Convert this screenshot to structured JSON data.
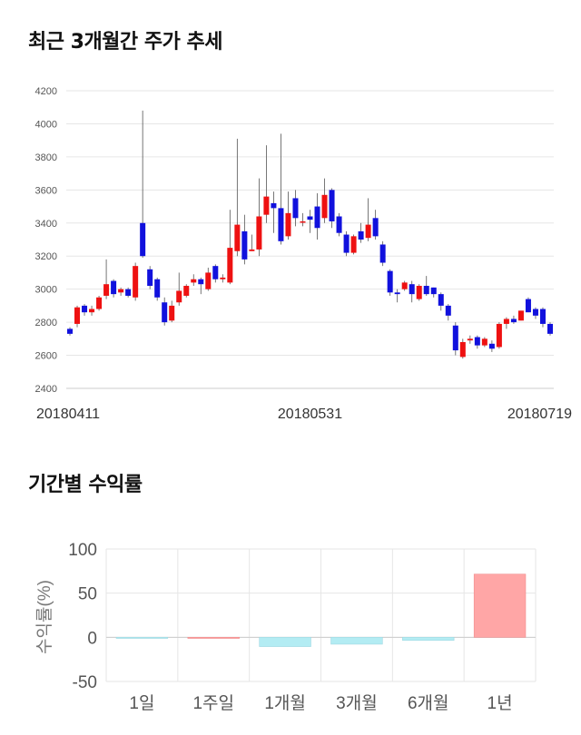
{
  "sections": {
    "price_title": "최근 3개월간 주가 추세",
    "return_title": "기간별 수익률"
  },
  "colors": {
    "up": "#ee1111",
    "down": "#1111dd",
    "positive_bar": "#ffa6a6",
    "negative_bar": "#b3ecf3",
    "grid": "#e6e6e6"
  },
  "chart_data": [
    {
      "type": "candlestick",
      "title": "최근 3개월간 주가 추세",
      "ylim": [
        2400,
        4200
      ],
      "yticks": [
        2400,
        2600,
        2800,
        3000,
        3200,
        3400,
        3600,
        3800,
        4000,
        4200
      ],
      "xtick_labels": [
        {
          "index": 0,
          "label": "20180411"
        },
        {
          "index": 33,
          "label": "20180531"
        },
        {
          "index": 67,
          "label": "20180719"
        }
      ],
      "candles": [
        [
          2760,
          2730,
          2770,
          2720
        ],
        [
          2790,
          2890,
          2900,
          2770
        ],
        [
          2900,
          2860,
          2910,
          2840
        ],
        [
          2860,
          2880,
          2900,
          2840
        ],
        [
          2880,
          2950,
          2960,
          2870
        ],
        [
          2960,
          3030,
          3180,
          2940
        ],
        [
          3050,
          2970,
          3060,
          2950
        ],
        [
          2980,
          3000,
          3010,
          2960
        ],
        [
          3000,
          2960,
          3010,
          2950
        ],
        [
          2950,
          3140,
          3160,
          2930
        ],
        [
          3400,
          3200,
          4080,
          3190
        ],
        [
          3120,
          3020,
          3140,
          3000
        ],
        [
          3060,
          2950,
          3070,
          2930
        ],
        [
          2920,
          2800,
          2950,
          2780
        ],
        [
          2810,
          2900,
          2930,
          2800
        ],
        [
          2920,
          2990,
          3100,
          2900
        ],
        [
          2960,
          3020,
          3030,
          2950
        ],
        [
          3040,
          3060,
          3090,
          3020
        ],
        [
          3060,
          3030,
          3070,
          2970
        ],
        [
          3000,
          3100,
          3130,
          2990
        ],
        [
          3140,
          3060,
          3150,
          3040
        ],
        [
          3060,
          3070,
          3090,
          3040
        ],
        [
          3040,
          3250,
          3480,
          3030
        ],
        [
          3230,
          3390,
          3910,
          3200
        ],
        [
          3350,
          3180,
          3450,
          3150
        ],
        [
          3230,
          3240,
          3330,
          3230
        ],
        [
          3240,
          3440,
          3670,
          3200
        ],
        [
          3450,
          3560,
          3870,
          3400
        ],
        [
          3520,
          3490,
          3590,
          3340
        ],
        [
          3490,
          3290,
          3940,
          3270
        ],
        [
          3320,
          3460,
          3590,
          3300
        ],
        [
          3550,
          3430,
          3600,
          3380
        ],
        [
          3410,
          3410,
          3460,
          3380
        ],
        [
          3440,
          3420,
          3480,
          3340
        ],
        [
          3500,
          3370,
          3580,
          3300
        ],
        [
          3430,
          3570,
          3670,
          3400
        ],
        [
          3600,
          3410,
          3610,
          3370
        ],
        [
          3440,
          3340,
          3460,
          3320
        ],
        [
          3330,
          3220,
          3350,
          3200
        ],
        [
          3220,
          3320,
          3330,
          3210
        ],
        [
          3350,
          3300,
          3400,
          3280
        ],
        [
          3310,
          3390,
          3550,
          3290
        ],
        [
          3430,
          3320,
          3480,
          3300
        ],
        [
          3270,
          3160,
          3290,
          3140
        ],
        [
          3110,
          2980,
          3120,
          2960
        ],
        [
          2980,
          2970,
          3000,
          2920
        ],
        [
          3000,
          3040,
          3050,
          2990
        ],
        [
          3030,
          2970,
          3050,
          2920
        ],
        [
          2940,
          3020,
          3030,
          2930
        ],
        [
          3020,
          2970,
          3080,
          2960
        ],
        [
          3010,
          2970,
          3010,
          2950
        ],
        [
          2970,
          2900,
          2980,
          2870
        ],
        [
          2900,
          2840,
          2910,
          2810
        ],
        [
          2780,
          2630,
          2800,
          2600
        ],
        [
          2590,
          2680,
          2700,
          2580
        ],
        [
          2690,
          2700,
          2720,
          2670
        ],
        [
          2710,
          2660,
          2720,
          2640
        ],
        [
          2660,
          2700,
          2710,
          2650
        ],
        [
          2670,
          2640,
          2690,
          2620
        ],
        [
          2650,
          2790,
          2800,
          2640
        ],
        [
          2790,
          2820,
          2830,
          2760
        ],
        [
          2820,
          2800,
          2840,
          2790
        ],
        [
          2810,
          2870,
          2870,
          2810
        ],
        [
          2940,
          2860,
          2950,
          2860
        ],
        [
          2880,
          2840,
          2890,
          2820
        ],
        [
          2880,
          2790,
          2890,
          2770
        ],
        [
          2790,
          2730,
          2800,
          2720
        ]
      ]
    },
    {
      "type": "bar",
      "title": "기간별 수익률",
      "ylabel": "수익률(%)",
      "ylim": [
        -50,
        100
      ],
      "yticks": [
        -50,
        0,
        50,
        100
      ],
      "categories": [
        "1일",
        "1주일",
        "1개월",
        "3개월",
        "6개월",
        "1년"
      ],
      "values": [
        -1.2,
        0,
        -10.5,
        -7.8,
        -3.5,
        71.5
      ]
    }
  ]
}
